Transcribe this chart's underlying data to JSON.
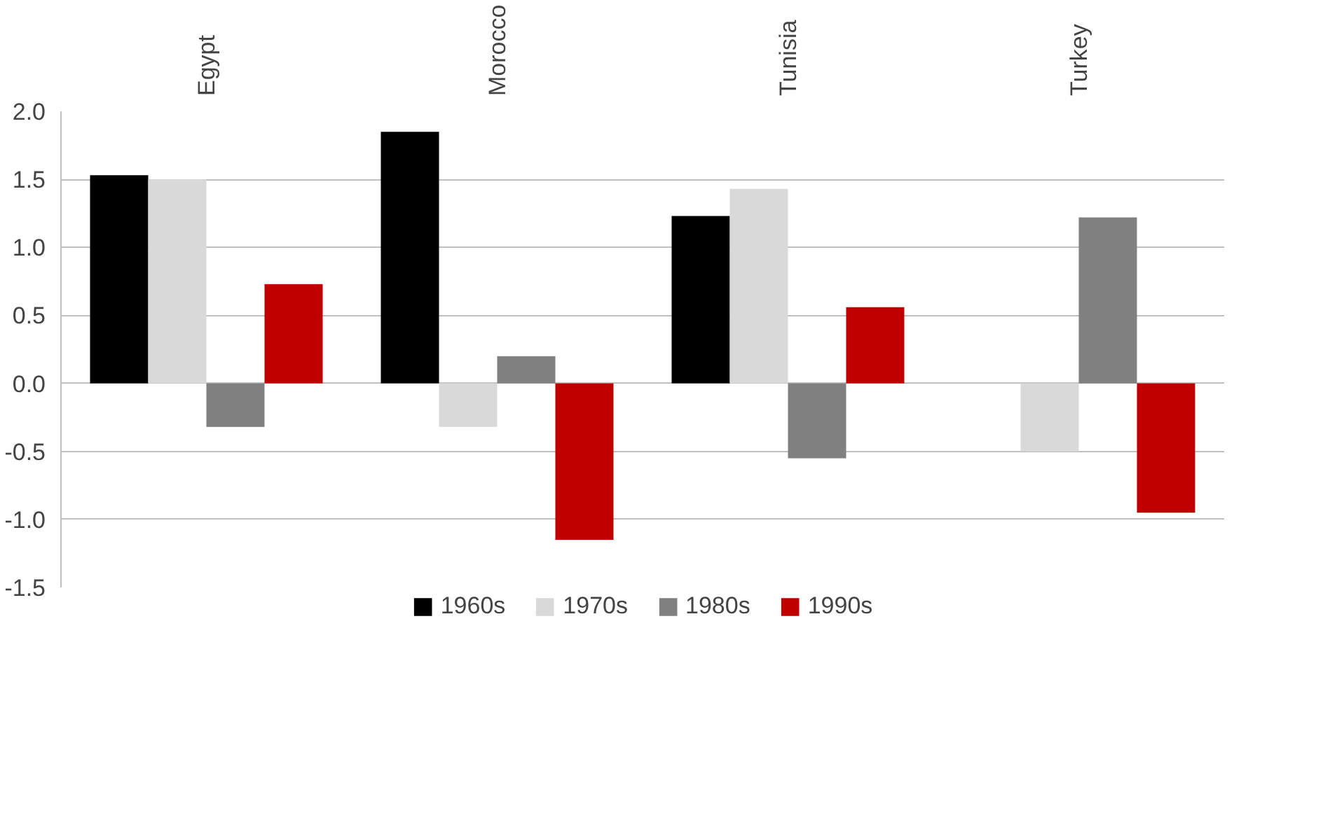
{
  "chart_data": {
    "type": "bar",
    "categories": [
      "Egypt",
      "Morocco",
      "Tunisia",
      "Turkey"
    ],
    "series": [
      {
        "name": "1960s",
        "color": "#000000",
        "values": [
          1.53,
          1.85,
          1.23,
          null
        ]
      },
      {
        "name": "1970s",
        "color": "#d9d9d9",
        "values": [
          1.5,
          -0.32,
          1.43,
          -0.5
        ]
      },
      {
        "name": "1980s",
        "color": "#808080",
        "values": [
          -0.32,
          0.2,
          -0.55,
          1.22
        ]
      },
      {
        "name": "1990s",
        "color": "#c00000",
        "values": [
          0.73,
          -1.15,
          0.56,
          -0.95
        ]
      }
    ],
    "ylim": [
      -1.5,
      2.0
    ],
    "yticks": [
      {
        "value": -1.5,
        "label": "-1.5"
      },
      {
        "value": -1,
        "label": "-1.0"
      },
      {
        "value": -0.5,
        "label": "-0.5"
      },
      {
        "value": 0,
        "label": "0.0"
      },
      {
        "value": 0.5,
        "label": "0.5"
      },
      {
        "value": 1,
        "label": "1.0"
      },
      {
        "value": 1.5,
        "label": "1.5"
      },
      {
        "value": 2,
        "label": "2.0"
      }
    ],
    "grid": "y",
    "legend": "bottom"
  }
}
